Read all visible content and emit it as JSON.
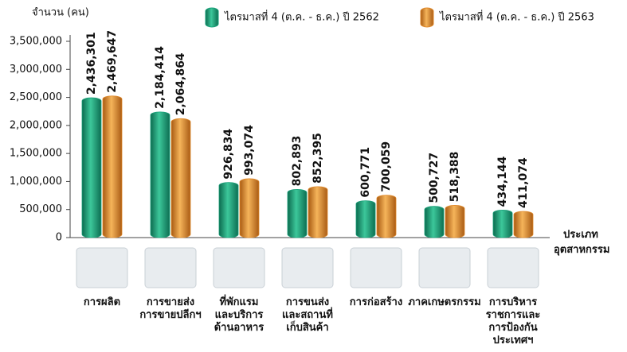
{
  "chart_data": {
    "type": "bar",
    "y_label": "จำนวน (คน)",
    "x_label": "ประเภท อุตสาหกรรม",
    "categories": [
      "การผลิต",
      "การขายส่ง การขายปลีกฯ",
      "ที่พักแรม และบริการ ด้านอาหาร",
      "การขนส่ง และสถานที่ เก็บสินค้า",
      "การก่อสร้าง",
      "ภาคเกษตรกรรม",
      "การบริหาร ราชการและ การป้องกัน ประเทศฯ"
    ],
    "series": [
      {
        "name": "ไตรมาสที่ 4 (ต.ค. - ธ.ค.) ปี 2562",
        "color": "#17a078",
        "values": [
          2436301,
          2184414,
          926834,
          802893,
          600771,
          500727,
          434144
        ],
        "value_labels": [
          "2,436,301",
          "2,184,414",
          "926,834",
          "802,893",
          "600,771",
          "500,727",
          "434,144"
        ]
      },
      {
        "name": "ไตรมาสที่ 4 (ต.ค. - ธ.ค.) ปี 2563",
        "color": "#e0892a",
        "values": [
          2469647,
          2064864,
          993074,
          852395,
          700059,
          518388,
          411074
        ],
        "value_labels": [
          "2,469,647",
          "2,064,864",
          "993,074",
          "852,395",
          "700,059",
          "518,388",
          "411,074"
        ]
      }
    ],
    "ylim": [
      0,
      3500000
    ],
    "yticks": [
      0,
      {
        "value": 500000,
        "label": "500,000"
      },
      {
        "value": 1000000,
        "label": "1,000,000"
      },
      {
        "value": 1500000,
        "label": "1,500,000"
      },
      {
        "value": 2000000,
        "label": "2,000,000"
      },
      {
        "value": 2500000,
        "label": "2,500,000"
      },
      {
        "value": 3000000,
        "label": "3,000,000"
      },
      {
        "value": 3500000,
        "label": "3,500,000"
      }
    ]
  }
}
